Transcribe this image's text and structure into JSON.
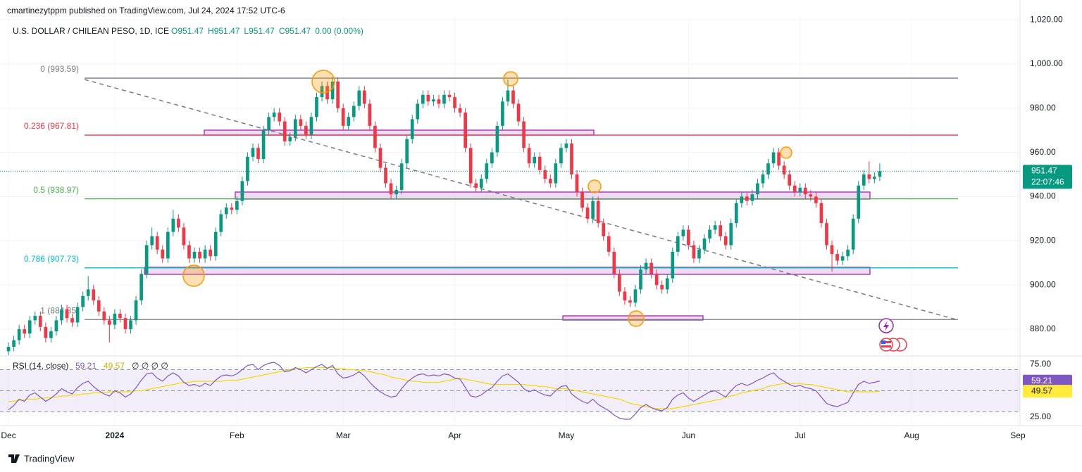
{
  "header": {
    "published": "cmartinezytppm published on TradingView.com, Jul 24, 2024 17:52 UTC-6",
    "countdown": "22:07:46"
  },
  "footer": {
    "brand": "TradingView"
  },
  "chart_data": {
    "type": "candlestick",
    "title": "U.S. DOLLAR / CHILEAN PESO, 1D, ICE",
    "legend_ohlc": [
      "O951.47",
      "H951.47",
      "L951.47",
      "C951.47",
      "0.00 (0.00%)"
    ],
    "up_color": "#089981",
    "down_color": "#f23645",
    "xlim": [
      -1.6,
      190.4
    ],
    "xticks": [
      {
        "value": 0,
        "label": "Dec"
      },
      {
        "value": 20,
        "label": "2024"
      },
      {
        "value": 43,
        "label": "Feb"
      },
      {
        "value": 63,
        "label": "Mar"
      },
      {
        "value": 84,
        "label": "Apr"
      },
      {
        "value": 105,
        "label": "May"
      },
      {
        "value": 128,
        "label": "Jun"
      },
      {
        "value": 149,
        "label": "Jul"
      },
      {
        "value": 170,
        "label": "Aug"
      },
      {
        "value": 190,
        "label": "Sep"
      }
    ],
    "ylim": [
      868.2,
      1021.3
    ],
    "yticks": [
      {
        "value": 880,
        "label": "880.00"
      },
      {
        "value": 900,
        "label": "900.00"
      },
      {
        "value": 920,
        "label": "920.00"
      },
      {
        "value": 940,
        "label": "940.00"
      },
      {
        "value": 960,
        "label": "960.00"
      },
      {
        "value": 980,
        "label": "980.00"
      },
      {
        "value": 1000,
        "label": "1,000.00"
      },
      {
        "value": 1020,
        "label": "1,020.00"
      }
    ],
    "grid": true,
    "fib_levels": [
      {
        "label": "0 (993.59)",
        "value": 993.59,
        "color": "#787b86"
      },
      {
        "label": "0.236 (967.81)",
        "value": 967.81,
        "color": "#f23645"
      },
      {
        "label": "0.5 (938.97)",
        "value": 938.97,
        "color": "#4caf50"
      },
      {
        "label": "0.786 (907.73)",
        "value": 907.73,
        "color": "#00bcd4"
      },
      {
        "label": "1 (884.35)",
        "value": 884.35,
        "color": "#787b86"
      }
    ],
    "candles": [
      [
        870,
        874,
        868,
        872
      ],
      [
        872,
        877,
        870,
        875
      ],
      [
        875,
        882,
        873,
        880
      ],
      [
        880,
        882,
        876,
        878
      ],
      [
        878,
        886,
        876,
        884
      ],
      [
        884,
        888,
        882,
        886
      ],
      [
        886,
        888,
        879,
        881
      ],
      [
        881,
        883,
        874,
        876
      ],
      [
        876,
        881,
        874,
        879
      ],
      [
        879,
        886,
        877,
        884
      ],
      [
        884,
        891,
        882,
        889
      ],
      [
        889,
        891,
        883,
        885
      ],
      [
        885,
        887,
        881,
        883
      ],
      [
        883,
        892,
        881,
        890
      ],
      [
        890,
        897,
        888,
        895
      ],
      [
        895,
        904,
        893,
        898
      ],
      [
        898,
        900,
        891,
        893
      ],
      [
        893,
        895,
        886,
        888
      ],
      [
        888,
        890,
        882,
        884
      ],
      [
        884,
        886,
        874,
        882
      ],
      [
        882,
        889,
        880,
        887
      ],
      [
        887,
        889,
        883,
        885
      ],
      [
        885,
        887,
        878,
        880
      ],
      [
        880,
        886,
        878,
        884
      ],
      [
        884,
        895,
        882,
        893
      ],
      [
        893,
        907,
        891,
        905
      ],
      [
        905,
        920,
        903,
        918
      ],
      [
        918,
        926,
        916,
        922
      ],
      [
        922,
        924,
        914,
        916
      ],
      [
        916,
        918,
        910,
        912
      ],
      [
        912,
        926,
        910,
        924
      ],
      [
        924,
        934,
        922,
        930
      ],
      [
        930,
        932,
        924,
        926
      ],
      [
        926,
        928,
        916,
        918
      ],
      [
        918,
        920,
        910,
        912
      ],
      [
        912,
        917,
        910,
        915
      ],
      [
        915,
        917,
        910,
        912
      ],
      [
        912,
        918,
        910,
        916
      ],
      [
        916,
        918,
        911,
        913
      ],
      [
        913,
        926,
        911,
        924
      ],
      [
        924,
        934,
        922,
        932
      ],
      [
        932,
        937,
        930,
        935
      ],
      [
        935,
        937,
        932,
        934
      ],
      [
        934,
        940,
        932,
        938
      ],
      [
        938,
        949,
        936,
        947
      ],
      [
        947,
        960,
        945,
        958
      ],
      [
        958,
        964,
        956,
        962
      ],
      [
        962,
        964,
        955,
        957
      ],
      [
        957,
        972,
        955,
        970
      ],
      [
        970,
        978,
        968,
        976
      ],
      [
        976,
        980,
        974,
        978
      ],
      [
        978,
        980,
        972,
        974
      ],
      [
        974,
        976,
        963,
        965
      ],
      [
        965,
        969,
        963,
        967
      ],
      [
        967,
        977,
        965,
        975
      ],
      [
        975,
        977,
        970,
        972
      ],
      [
        972,
        974,
        966,
        968
      ],
      [
        968,
        978,
        966,
        976
      ],
      [
        976,
        987,
        974,
        985
      ],
      [
        985,
        992,
        983,
        990
      ],
      [
        990,
        992,
        982,
        984
      ],
      [
        984,
        994,
        982,
        992
      ],
      [
        992,
        994,
        978,
        980
      ],
      [
        980,
        982,
        970,
        972
      ],
      [
        972,
        978,
        970,
        976
      ],
      [
        976,
        983,
        974,
        981
      ],
      [
        981,
        990,
        979,
        988
      ],
      [
        988,
        990,
        980,
        982
      ],
      [
        982,
        984,
        970,
        972
      ],
      [
        972,
        974,
        960,
        962
      ],
      [
        962,
        964,
        951,
        953
      ],
      [
        953,
        955,
        944,
        946
      ],
      [
        946,
        948,
        939,
        941
      ],
      [
        941,
        945,
        939,
        943
      ],
      [
        943,
        957,
        941,
        955
      ],
      [
        955,
        968,
        953,
        966
      ],
      [
        966,
        977,
        964,
        975
      ],
      [
        975,
        984,
        973,
        982
      ],
      [
        982,
        988,
        980,
        986
      ],
      [
        986,
        988,
        981,
        983
      ],
      [
        983,
        986,
        981,
        984
      ],
      [
        984,
        986,
        980,
        982
      ],
      [
        982,
        988,
        980,
        986
      ],
      [
        986,
        988,
        983,
        985
      ],
      [
        985,
        987,
        978,
        980
      ],
      [
        980,
        982,
        976,
        978
      ],
      [
        978,
        980,
        960,
        962
      ],
      [
        962,
        964,
        944,
        946
      ],
      [
        946,
        948,
        942,
        944
      ],
      [
        944,
        950,
        942,
        948
      ],
      [
        948,
        957,
        946,
        955
      ],
      [
        955,
        962,
        953,
        960
      ],
      [
        960,
        974,
        958,
        972
      ],
      [
        972,
        985,
        970,
        983
      ],
      [
        983,
        993,
        981,
        988
      ],
      [
        988,
        990,
        980,
        982
      ],
      [
        982,
        984,
        972,
        974
      ],
      [
        974,
        976,
        960,
        962
      ],
      [
        962,
        964,
        953,
        955
      ],
      [
        955,
        960,
        953,
        958
      ],
      [
        958,
        960,
        950,
        952
      ],
      [
        952,
        954,
        946,
        948
      ],
      [
        948,
        950,
        944,
        946
      ],
      [
        946,
        957,
        944,
        955
      ],
      [
        955,
        964,
        953,
        962
      ],
      [
        962,
        966,
        960,
        964
      ],
      [
        964,
        966,
        948,
        950
      ],
      [
        950,
        952,
        940,
        942
      ],
      [
        942,
        944,
        933,
        935
      ],
      [
        935,
        937,
        928,
        930
      ],
      [
        930,
        940,
        928,
        938
      ],
      [
        938,
        940,
        926,
        928
      ],
      [
        928,
        930,
        920,
        922
      ],
      [
        922,
        924,
        913,
        915
      ],
      [
        915,
        917,
        903,
        905
      ],
      [
        905,
        907,
        895,
        897
      ],
      [
        897,
        899,
        891,
        893
      ],
      [
        893,
        895,
        890,
        892
      ],
      [
        892,
        900,
        890,
        898
      ],
      [
        898,
        909,
        896,
        907
      ],
      [
        907,
        912,
        905,
        910
      ],
      [
        910,
        912,
        903,
        905
      ],
      [
        905,
        907,
        898,
        900
      ],
      [
        900,
        902,
        896,
        898
      ],
      [
        898,
        905,
        896,
        903
      ],
      [
        903,
        917,
        901,
        915
      ],
      [
        915,
        924,
        913,
        922
      ],
      [
        922,
        927,
        920,
        925
      ],
      [
        925,
        927,
        916,
        918
      ],
      [
        918,
        920,
        910,
        912
      ],
      [
        912,
        918,
        910,
        916
      ],
      [
        916,
        923,
        914,
        921
      ],
      [
        921,
        927,
        919,
        925
      ],
      [
        925,
        929,
        923,
        927
      ],
      [
        927,
        929,
        920,
        922
      ],
      [
        922,
        924,
        916,
        918
      ],
      [
        918,
        930,
        916,
        928
      ],
      [
        928,
        939,
        926,
        937
      ],
      [
        937,
        942,
        935,
        940
      ],
      [
        940,
        942,
        936,
        938
      ],
      [
        938,
        943,
        936,
        941
      ],
      [
        941,
        948,
        939,
        946
      ],
      [
        946,
        952,
        944,
        950
      ],
      [
        950,
        957,
        948,
        955
      ],
      [
        955,
        962,
        953,
        960
      ],
      [
        960,
        962,
        952,
        954
      ],
      [
        954,
        956,
        948,
        950
      ],
      [
        950,
        952,
        943,
        945
      ],
      [
        945,
        947,
        940,
        942
      ],
      [
        942,
        946,
        940,
        944
      ],
      [
        944,
        946,
        939,
        941
      ],
      [
        941,
        943,
        938,
        940
      ],
      [
        940,
        942,
        935,
        937
      ],
      [
        937,
        939,
        926,
        928
      ],
      [
        928,
        930,
        916,
        918
      ],
      [
        918,
        920,
        906,
        914
      ],
      [
        914,
        916,
        909,
        911
      ],
      [
        911,
        915,
        909,
        913
      ],
      [
        913,
        918,
        911,
        916
      ],
      [
        916,
        932,
        914,
        930
      ],
      [
        930,
        947,
        928,
        945
      ],
      [
        945,
        952,
        943,
        950
      ],
      [
        950,
        956,
        946,
        948
      ],
      [
        948,
        951,
        946,
        949
      ],
      [
        949,
        955,
        947,
        951.47
      ]
    ],
    "rsi": {
      "title": "RSI (14, close)",
      "extra": "∅ ∅ ∅ ∅",
      "color": "#7e57c2",
      "ma_color": "#f5d90a",
      "ylim": [
        17,
        83.67
      ],
      "yticks": [
        {
          "value": 75,
          "label": "75.00"
        },
        {
          "value": 25,
          "label": "25.00"
        }
      ],
      "levels": [
        70,
        50,
        30
      ],
      "values": [
        32,
        36,
        42,
        40,
        46,
        48,
        44,
        40,
        43,
        47,
        52,
        49,
        47,
        53,
        57,
        59,
        54,
        50,
        47,
        45,
        50,
        48,
        44,
        47,
        53,
        60,
        66,
        67,
        62,
        59,
        64,
        67,
        64,
        58,
        55,
        56,
        54,
        57,
        55,
        60,
        64,
        65,
        64,
        66,
        70,
        74,
        75,
        70,
        74,
        76,
        77,
        74,
        68,
        69,
        72,
        70,
        67,
        70,
        73,
        75,
        71,
        74,
        66,
        62,
        63,
        65,
        68,
        64,
        58,
        53,
        49,
        46,
        44,
        45,
        52,
        58,
        62,
        65,
        66,
        64,
        65,
        64,
        66,
        65,
        62,
        61,
        53,
        45,
        44,
        46,
        50,
        53,
        59,
        64,
        66,
        62,
        58,
        52,
        49,
        51,
        48,
        46,
        45,
        50,
        54,
        55,
        47,
        43,
        40,
        38,
        42,
        37,
        34,
        31,
        27,
        24,
        23,
        23,
        28,
        34,
        37,
        34,
        32,
        31,
        34,
        42,
        46,
        48,
        43,
        40,
        43,
        46,
        49,
        50,
        47,
        44,
        50,
        55,
        57,
        55,
        57,
        60,
        62,
        65,
        67,
        62,
        59,
        56,
        54,
        55,
        53,
        52,
        50,
        44,
        38,
        36,
        35,
        37,
        39,
        48,
        56,
        59,
        57,
        58,
        59.21
      ],
      "ma": [
        40,
        40,
        41,
        41,
        42,
        42,
        43,
        43,
        44,
        44,
        45,
        45,
        46,
        46,
        47,
        47,
        48,
        48,
        48,
        49,
        49,
        49,
        49,
        49,
        50,
        50,
        51,
        52,
        53,
        54,
        55,
        56,
        57,
        58,
        58,
        59,
        59,
        59,
        59,
        59,
        59,
        60,
        60,
        60,
        61,
        62,
        63,
        64,
        65,
        66,
        67,
        68,
        69,
        70,
        71,
        71,
        72,
        72,
        72,
        72,
        72,
        72,
        71,
        71,
        70,
        70,
        69,
        69,
        68,
        67,
        66,
        65,
        63,
        62,
        61,
        60,
        59,
        59,
        58,
        58,
        58,
        58,
        59,
        60,
        61,
        62,
        61,
        60,
        59,
        58,
        57,
        56,
        56,
        56,
        56,
        56,
        56,
        56,
        55,
        55,
        54,
        54,
        53,
        52,
        52,
        52,
        51,
        50,
        49,
        48,
        47,
        46,
        45,
        44,
        43,
        42,
        40,
        38,
        37,
        36,
        35,
        34,
        33,
        33,
        33,
        33,
        34,
        35,
        36,
        37,
        38,
        39,
        40,
        41,
        42,
        44,
        45,
        46,
        48,
        49,
        50,
        51,
        52,
        54,
        55,
        56,
        57,
        57,
        57,
        57,
        56,
        56,
        55,
        54,
        53,
        52,
        51,
        50,
        49,
        49,
        49,
        49,
        49,
        49,
        49.57
      ]
    }
  }
}
